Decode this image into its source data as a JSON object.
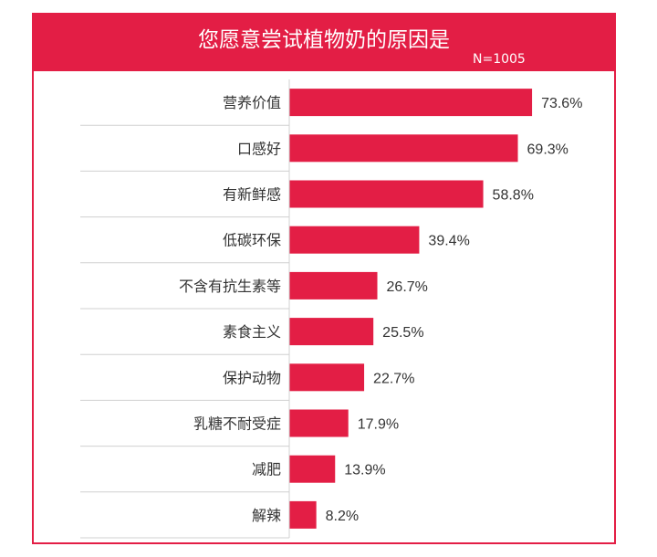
{
  "chart_data": {
    "type": "bar",
    "orientation": "horizontal",
    "title": "您愿意尝试植物奶的原因是",
    "sample_size": "N=1005",
    "categories": [
      "营养价值",
      "口感好",
      "有新鲜感",
      "低碳环保",
      "不含有抗生素等",
      "素食主义",
      "保护动物",
      "乳糖不耐受症",
      "减肥",
      "解辣"
    ],
    "values": [
      73.6,
      69.3,
      58.8,
      39.4,
      26.7,
      25.5,
      22.7,
      17.9,
      13.9,
      8.2
    ],
    "value_labels": [
      "73.6%",
      "69.3%",
      "58.8%",
      "39.4%",
      "26.7%",
      "25.5%",
      "22.7%",
      "17.9%",
      "13.9%",
      "8.2%"
    ],
    "xlim": [
      0,
      100
    ],
    "grid": false,
    "legend": "none"
  },
  "colors": {
    "accent": "#e31e45",
    "text": "#333333",
    "separator": "#d0d0d0"
  }
}
